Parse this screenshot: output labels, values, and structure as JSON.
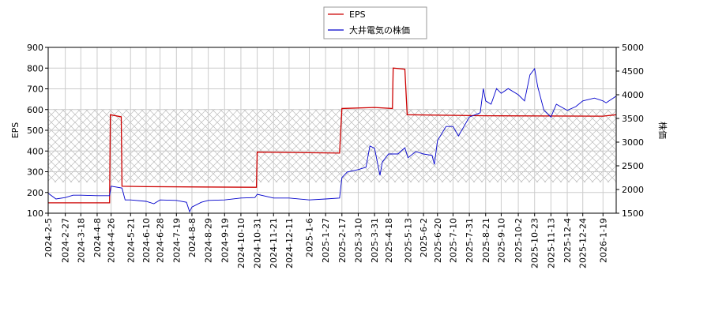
{
  "chart_data": {
    "type": "line",
    "xlim": [
      "2024-2-5",
      "2026-2-5"
    ],
    "xticks": [
      "2024-2-5",
      "2024-2-27",
      "2024-3-18",
      "2024-4-8",
      "2024-4-26",
      "2024-5-21",
      "2024-6-10",
      "2024-6-28",
      "2024-7-19",
      "2024-8-8",
      "2024-8-29",
      "2024-9-19",
      "2024-10-10",
      "2024-10-31",
      "2024-11-21",
      "2024-12-11",
      "2025-1-6",
      "2025-1-27",
      "2025-2-17",
      "2025-3-10",
      "2025-3-31",
      "2025-4-18",
      "2025-5-13",
      "2025-6-2",
      "2025-6-20",
      "2025-7-10",
      "2025-7-31",
      "2025-8-21",
      "2025-9-10",
      "2025-10-2",
      "2025-10-23",
      "2025-11-13",
      "2025-12-4",
      "2025-12-24",
      "2026-1-19"
    ],
    "ylabel": "EPS",
    "y2label": "株価",
    "ylim": [
      100,
      900
    ],
    "yticks": [
      100,
      200,
      300,
      400,
      500,
      600,
      700,
      800,
      900
    ],
    "y2lim": [
      1500,
      5000
    ],
    "y2ticks": [
      1500,
      2000,
      2500,
      3000,
      3500,
      4000,
      4500,
      5000
    ],
    "grid": true,
    "legend": "top",
    "series": [
      {
        "name": "EPS",
        "color": "#cc0000",
        "axis": "y",
        "x": [
          "2024-2-5",
          "2024-4-24",
          "2024-4-25",
          "2024-5-9",
          "2024-5-10",
          "2024-6-10",
          "2024-10-30",
          "2024-10-31",
          "2025-2-14",
          "2025-2-17",
          "2025-3-31",
          "2025-4-23",
          "2025-4-24",
          "2025-5-9",
          "2025-5-12",
          "2025-8-21",
          "2026-1-19",
          "2026-2-5"
        ],
        "values": [
          150,
          150,
          575,
          565,
          230,
          228,
          225,
          395,
          390,
          605,
          610,
          605,
          800,
          795,
          575,
          570,
          568,
          575
        ]
      },
      {
        "name": "大井電気の株価",
        "color": "#0000cc",
        "axis": "y2",
        "x": [
          "2024-2-5",
          "2024-2-15",
          "2024-2-27",
          "2024-3-8",
          "2024-3-18",
          "2024-4-8",
          "2024-4-24",
          "2024-4-26",
          "2024-5-10",
          "2024-5-14",
          "2024-5-21",
          "2024-6-10",
          "2024-6-20",
          "2024-6-28",
          "2024-7-19",
          "2024-8-1",
          "2024-8-5",
          "2024-8-8",
          "2024-8-20",
          "2024-8-29",
          "2024-9-19",
          "2024-10-10",
          "2024-10-28",
          "2024-10-31",
          "2024-11-21",
          "2024-12-11",
          "2025-1-6",
          "2025-1-27",
          "2025-2-14",
          "2025-2-17",
          "2025-2-24",
          "2025-3-10",
          "2025-3-20",
          "2025-3-25",
          "2025-3-31",
          "2025-4-7",
          "2025-4-10",
          "2025-4-18",
          "2025-4-30",
          "2025-5-9",
          "2025-5-13",
          "2025-5-23",
          "2025-6-2",
          "2025-6-13",
          "2025-6-16",
          "2025-6-20",
          "2025-7-1",
          "2025-7-10",
          "2025-7-17",
          "2025-7-31",
          "2025-8-14",
          "2025-8-18",
          "2025-8-21",
          "2025-8-28",
          "2025-9-4",
          "2025-9-10",
          "2025-9-19",
          "2025-10-2",
          "2025-10-10",
          "2025-10-17",
          "2025-10-23",
          "2025-10-27",
          "2025-11-4",
          "2025-11-13",
          "2025-11-20",
          "2025-12-4",
          "2025-12-15",
          "2025-12-24",
          "2026-1-8",
          "2026-1-19",
          "2026-1-23",
          "2026-2-5"
        ],
        "values": [
          1920,
          1800,
          1830,
          1880,
          1880,
          1870,
          1870,
          2070,
          2030,
          1780,
          1780,
          1750,
          1700,
          1780,
          1770,
          1730,
          1530,
          1630,
          1730,
          1770,
          1780,
          1820,
          1830,
          1900,
          1820,
          1820,
          1780,
          1800,
          1820,
          2250,
          2370,
          2420,
          2470,
          2920,
          2870,
          2300,
          2580,
          2750,
          2750,
          2880,
          2670,
          2800,
          2750,
          2720,
          2530,
          3030,
          3330,
          3330,
          3130,
          3530,
          3620,
          4130,
          3870,
          3800,
          4130,
          4030,
          4130,
          4000,
          3870,
          4420,
          4550,
          4170,
          3670,
          3530,
          3800,
          3670,
          3750,
          3870,
          3930,
          3870,
          3830,
          3970
        ]
      }
    ]
  }
}
